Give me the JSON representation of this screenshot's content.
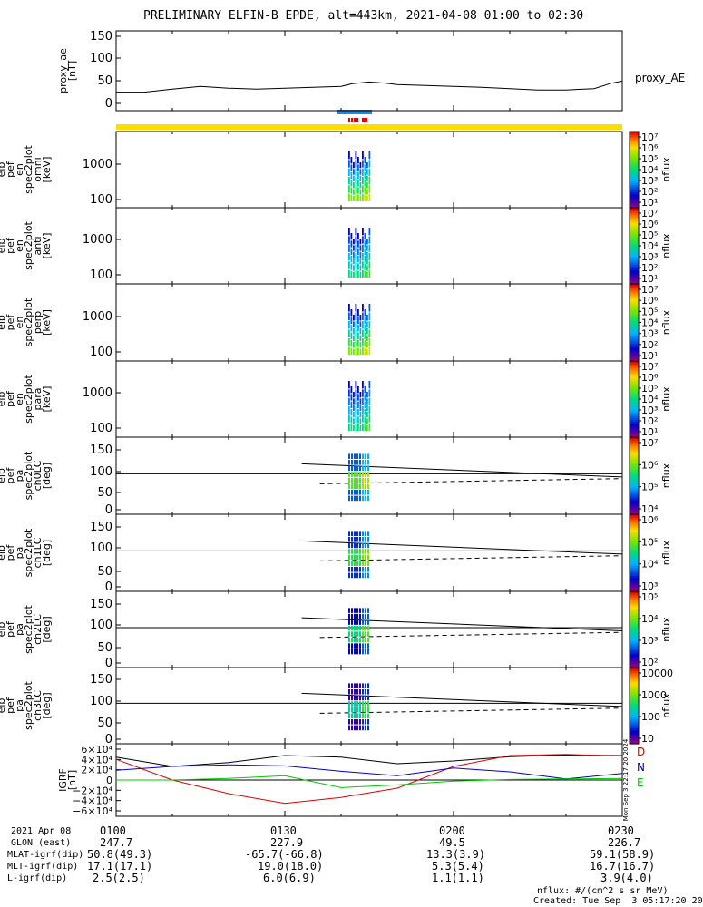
{
  "title": "PRELIMINARY ELFIN-B EPDE, alt=443km, 2021-04-08 01:00 to 02:30",
  "colors": {
    "fill_bar": "#ffdd00",
    "science_zone_bar": "#1e88e5",
    "marker_red": "#e60000",
    "geo_red": "#e00000",
    "geo_blue": "#0000cc",
    "geo_green": "#00cc00",
    "line_black": "#000000"
  },
  "panels": [
    {
      "id": "proxy_ae",
      "ylabel": [
        "proxy_ae",
        "[nT]"
      ],
      "yticks": [
        "150",
        "100",
        "50",
        "0"
      ],
      "right_label": "proxy_AE",
      "cbar": null
    },
    {
      "id": "en_omni",
      "ylabel": [
        "elb",
        "pef",
        "en",
        "spec2plot",
        "omni",
        "[keV]"
      ],
      "yticks": [
        "1000",
        "100"
      ],
      "cbar": {
        "unit": "nflux",
        "ticks": [
          "10⁷",
          "10⁶",
          "10⁵",
          "10⁴",
          "10³",
          "10²",
          "10¹"
        ]
      }
    },
    {
      "id": "en_anti",
      "ylabel": [
        "elb",
        "pef",
        "en",
        "spec2plot",
        "anti",
        "[keV]"
      ],
      "yticks": [
        "1000",
        "100"
      ],
      "cbar": {
        "unit": "nflux",
        "ticks": [
          "10⁷",
          "10⁶",
          "10⁵",
          "10⁴",
          "10³",
          "10²",
          "10¹"
        ]
      }
    },
    {
      "id": "en_perp",
      "ylabel": [
        "elb",
        "pef",
        "en",
        "spec2plot",
        "perp",
        "[keV]"
      ],
      "yticks": [
        "1000",
        "100"
      ],
      "cbar": {
        "unit": "nflux",
        "ticks": [
          "10⁷",
          "10⁶",
          "10⁵",
          "10⁴",
          "10³",
          "10²",
          "10¹"
        ]
      }
    },
    {
      "id": "en_para",
      "ylabel": [
        "elb",
        "pef",
        "en",
        "spec2plot",
        "para",
        "[keV]"
      ],
      "yticks": [
        "1000",
        "100"
      ],
      "cbar": {
        "unit": "nflux",
        "ticks": [
          "10⁷",
          "10⁶",
          "10⁵",
          "10⁴",
          "10³",
          "10²",
          "10¹"
        ]
      }
    },
    {
      "id": "pa_ch0",
      "ylabel": [
        "elb",
        "pef",
        "pa",
        "spec2plot",
        "ch0LC",
        "[deg]"
      ],
      "yticks": [
        "150",
        "100",
        "50",
        "0"
      ],
      "cbar": {
        "unit": "nflux",
        "ticks": [
          "10⁷",
          "10⁶",
          "10⁵",
          "10⁴"
        ]
      }
    },
    {
      "id": "pa_ch1",
      "ylabel": [
        "elb",
        "pef",
        "pa",
        "spec2plot",
        "ch1LC",
        "[deg]"
      ],
      "yticks": [
        "150",
        "100",
        "50",
        "0"
      ],
      "cbar": {
        "unit": "nflux",
        "ticks": [
          "10⁶",
          "10⁵",
          "10⁴",
          "10³"
        ]
      }
    },
    {
      "id": "pa_ch2",
      "ylabel": [
        "elb",
        "pef",
        "pa",
        "spec2plot",
        "ch2LC",
        "[deg]"
      ],
      "yticks": [
        "150",
        "100",
        "50",
        "0"
      ],
      "cbar": {
        "unit": "nflux",
        "ticks": [
          "10⁵",
          "10⁴",
          "10³",
          "10²"
        ]
      }
    },
    {
      "id": "pa_ch3",
      "ylabel": [
        "elb",
        "pef",
        "pa",
        "spec2plot",
        "ch3LC",
        "[deg]"
      ],
      "yticks": [
        "150",
        "100",
        "50",
        "0"
      ],
      "cbar": {
        "unit": "nflux",
        "ticks": [
          "10000",
          "1000",
          "100",
          "10"
        ]
      }
    },
    {
      "id": "igrf",
      "ylabel": [
        "IGRF",
        "[nT]"
      ],
      "yticks": [
        "6×10⁴",
        "4×10⁴",
        "2×10⁴",
        "0",
        "−2×10⁴",
        "−4×10⁴",
        "−6×10⁴"
      ],
      "legend": [
        "D",
        "N",
        "E"
      ],
      "side_stamp": "Mon Sep  3 22:17:20 2024"
    }
  ],
  "bottom_table": {
    "rows": [
      [
        "2021 Apr 08",
        "0100",
        "0130",
        "0200",
        "0230"
      ],
      [
        "GLON (east)",
        "247.7",
        "227.9",
        "49.5",
        "226.7"
      ],
      [
        "MLAT-igrf(dip)",
        "50.8(49.3)",
        "-65.7(-66.8)",
        "13.3(3.9)",
        "59.1(58.9)"
      ],
      [
        "MLT-igrf(dip)",
        "17.1(17.1)",
        "19.0(18.0)",
        "5.3(5.4)",
        "16.7(16.7)"
      ],
      [
        "L-igrf(dip)",
        "2.5(2.5)",
        "6.0(6.9)",
        "1.1(1.1)",
        "3.9(4.0)"
      ]
    ]
  },
  "footer": [
    "nflux: #/(cm^2 s sr MeV)",
    "Created: Tue Sep  3 05:17:20 2024"
  ],
  "chart_data": {
    "type": "line",
    "title": "PRELIMINARY ELFIN-B EPDE, alt=443km, 2021-04-08 01:00 to 02:30",
    "x_range": [
      "01:00",
      "02:30"
    ],
    "proxy_ae": {
      "x_min": [
        0,
        5,
        10,
        15,
        20,
        25,
        30,
        35,
        40,
        42,
        45,
        48,
        50,
        55,
        60,
        65,
        70,
        75,
        80,
        85,
        88,
        90
      ],
      "values": [
        25,
        25,
        32,
        38,
        34,
        32,
        34,
        36,
        38,
        44,
        48,
        45,
        42,
        40,
        38,
        36,
        33,
        30,
        30,
        33,
        45,
        50
      ],
      "ylim": [
        0,
        150
      ]
    },
    "igrf": {
      "x_min": [
        0,
        10,
        20,
        30,
        40,
        50,
        60,
        70,
        80,
        90
      ],
      "D": [
        38000,
        0,
        -25000,
        -43000,
        -32000,
        -15000,
        25000,
        45000,
        47000,
        44000
      ],
      "N": [
        18000,
        25000,
        28000,
        26000,
        16000,
        8000,
        22000,
        15000,
        2000,
        12000
      ],
      "E": [
        0,
        0,
        3000,
        8000,
        -14000,
        -9000,
        -2000,
        1000,
        2000,
        3000
      ],
      "B": [
        42000,
        25000,
        32000,
        45000,
        42000,
        30000,
        35000,
        43000,
        46000,
        45000
      ],
      "ylim": [
        -60000,
        60000
      ]
    },
    "pa_loss_cone": {
      "x_min": [
        33,
        90
      ],
      "upper": [
        115,
        82
      ],
      "lower": [
        65,
        78
      ]
    }
  }
}
